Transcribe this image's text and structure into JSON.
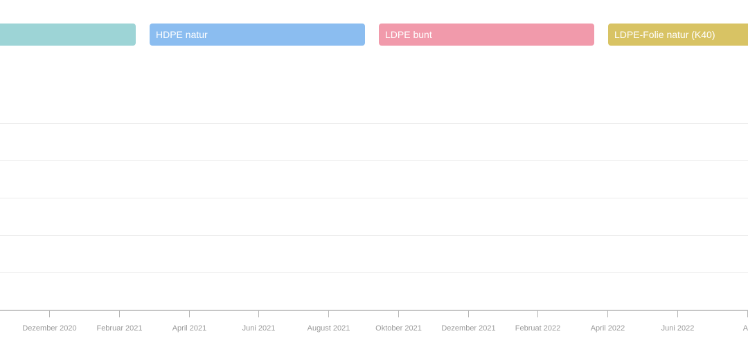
{
  "chart_data": {
    "type": "line",
    "title": "",
    "xlabel": "",
    "ylabel": "",
    "grid": true,
    "legend_position": "top",
    "series": [
      {
        "name": "",
        "color": "#9dd4d6",
        "values": []
      },
      {
        "name": "HDPE natur",
        "color": "#8bbdf0",
        "values": []
      },
      {
        "name": "LDPE bunt",
        "color": "#f19aab",
        "values": []
      },
      {
        "name": "LDPE-Folie natur (K40)",
        "color": "#d8c364",
        "values": []
      }
    ],
    "x_tick_labels": [
      "Dezember 2020",
      "Februar 2021",
      "April 2021",
      "Juni 2021",
      "August 2021",
      "Oktober 2021",
      "Dezember 2021",
      "Februat 2022",
      "April 2022",
      "Juni 2022",
      "Au"
    ]
  }
}
